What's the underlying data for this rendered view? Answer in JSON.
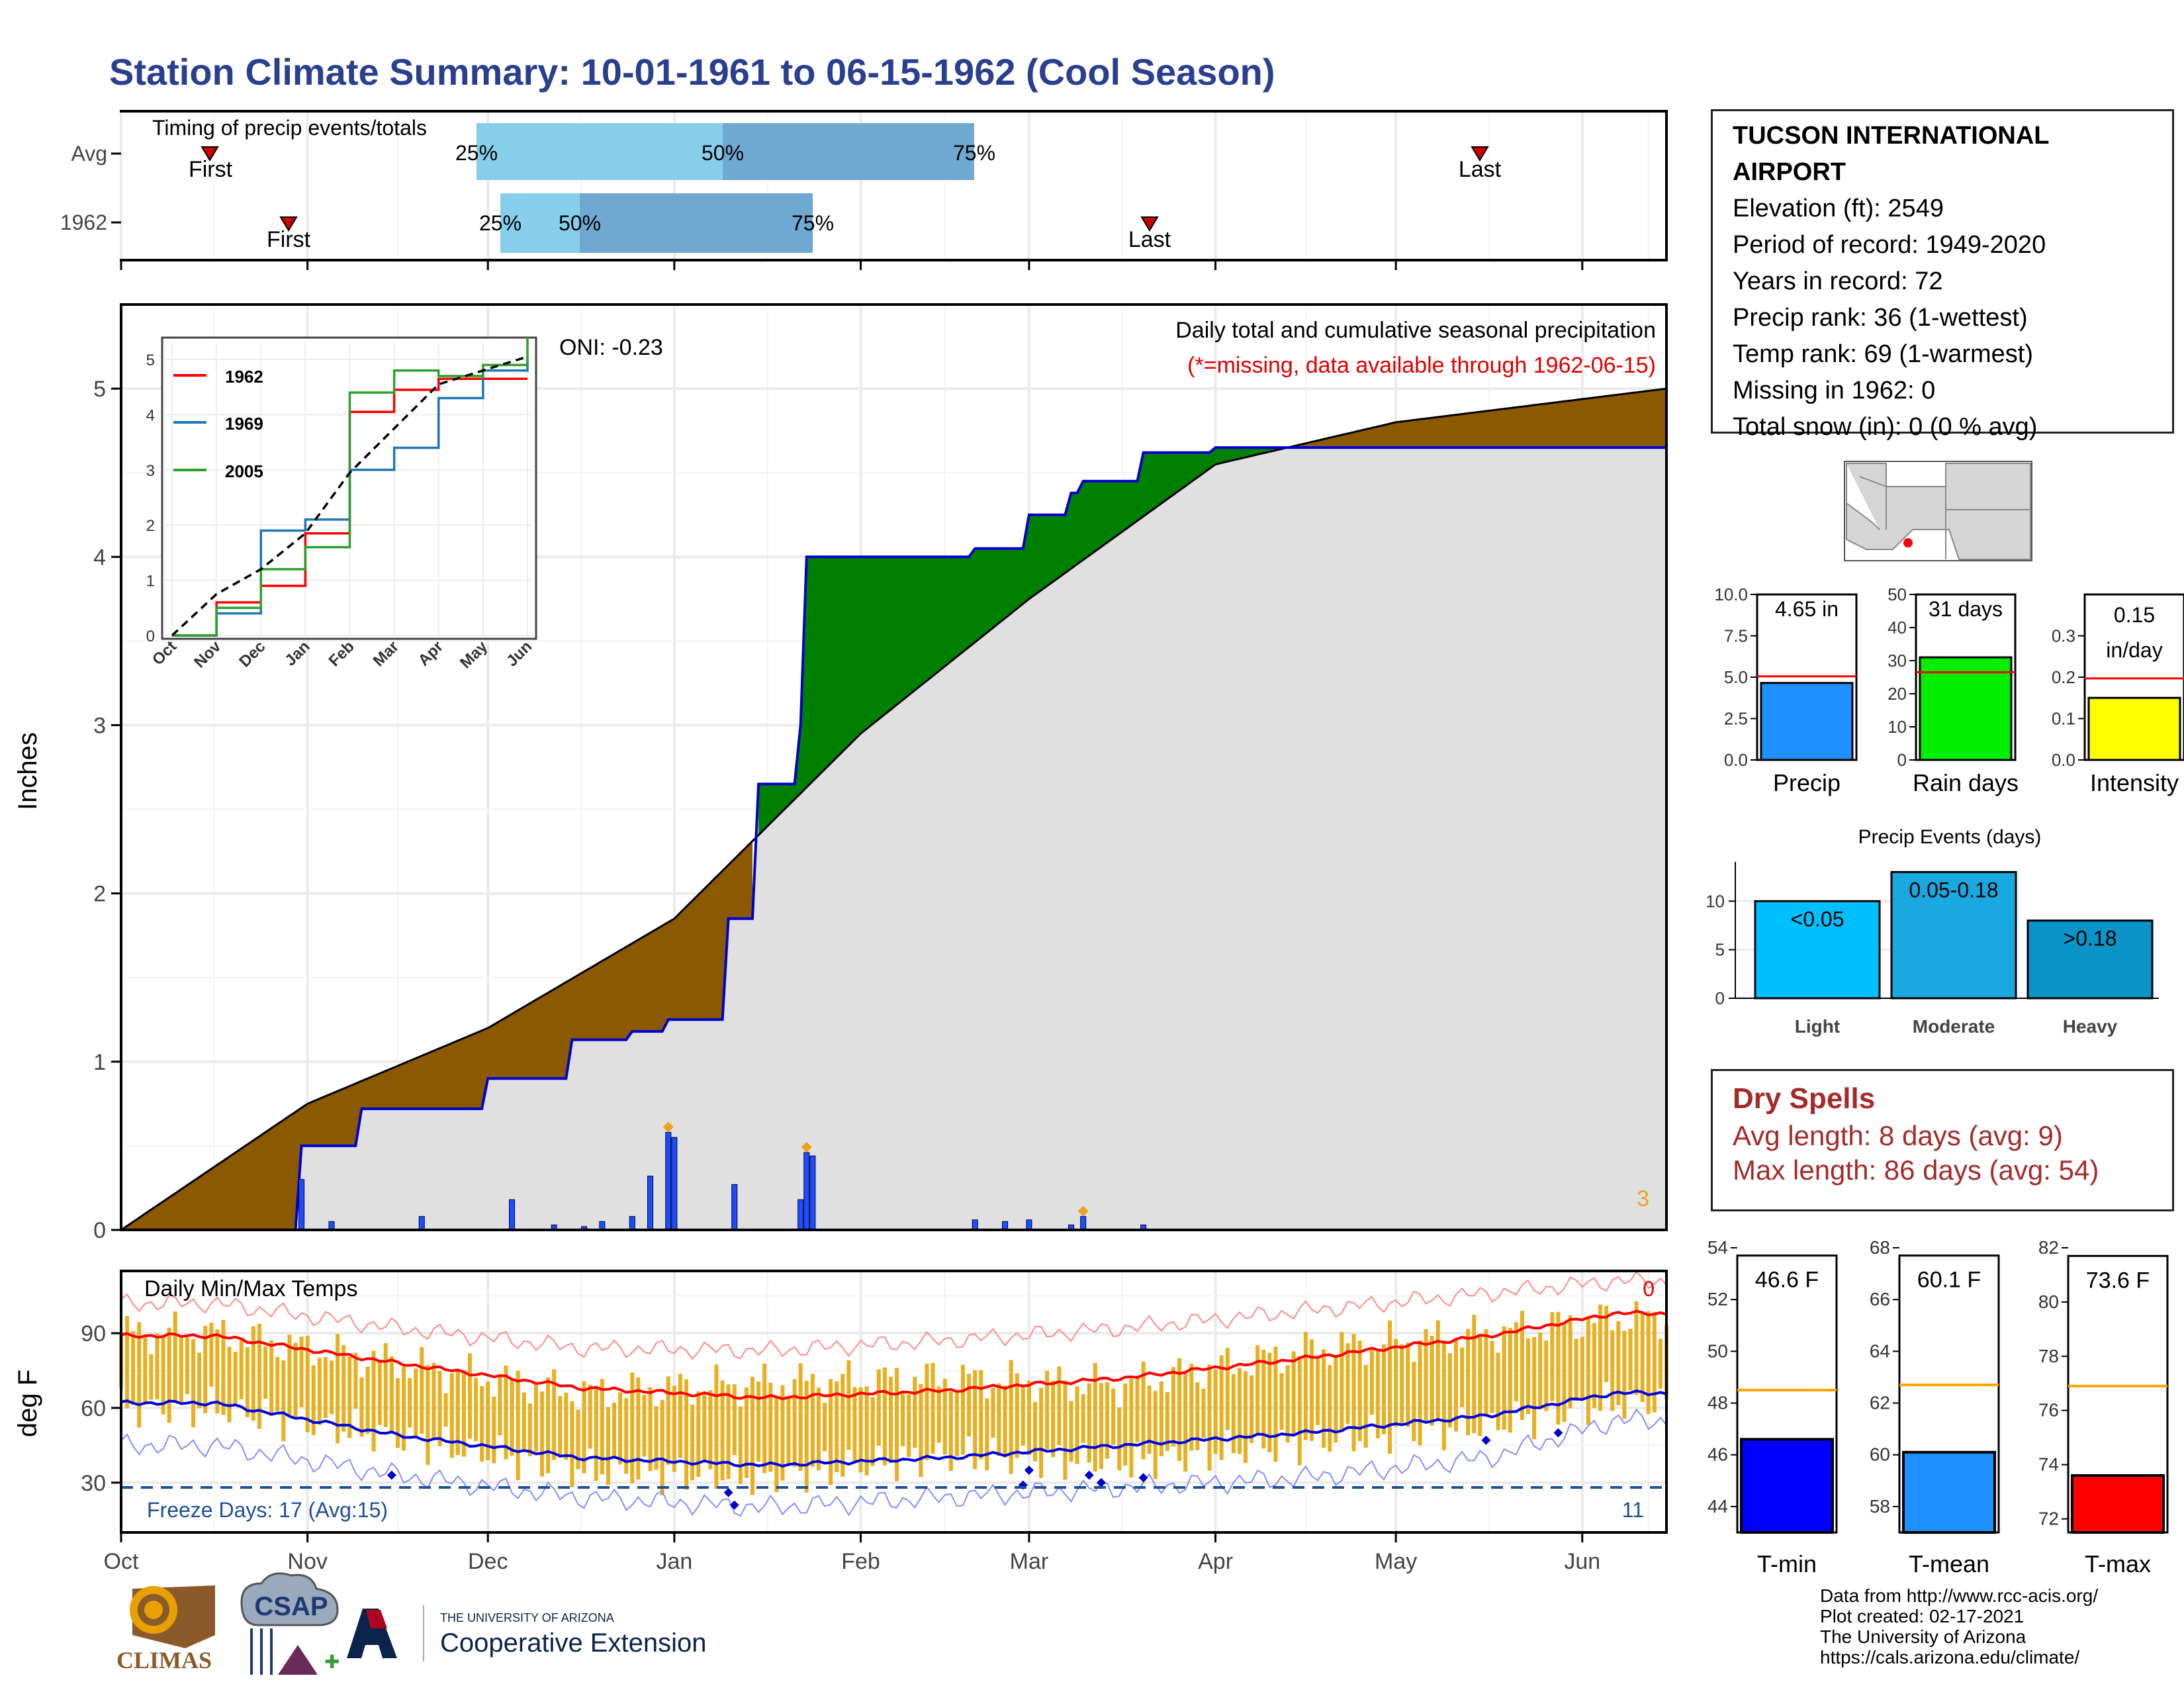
{
  "title": "Station Climate Summary: 10-01-1961 to 06-15-1962 (Cool Season)",
  "timing": {
    "label": "Timing of precip events/totals",
    "rows": [
      {
        "name": "Avg",
        "first": "First",
        "last": "Last",
        "q25": "25%",
        "q50": "50%",
        "q75": "75%"
      },
      {
        "name": "1962",
        "first": "First",
        "last": "Last",
        "q25": "25%",
        "q50": "50%",
        "q75": "75%"
      }
    ]
  },
  "precip_panel": {
    "oni": "ONI: -0.23",
    "heading": "Daily total and cumulative seasonal precipitation",
    "missing_note": "(*=missing, data available through 1962-06-15)",
    "y_label": "Inches",
    "y_ticks": [
      "0",
      "1",
      "2",
      "3",
      "4",
      "5"
    ],
    "corner_count": "3"
  },
  "inset": {
    "legend": [
      "1962",
      "1969",
      "2005"
    ],
    "y_ticks": [
      "0",
      "1",
      "2",
      "3",
      "4",
      "5"
    ],
    "x_ticks": [
      "Oct",
      "Nov",
      "Dec",
      "Jan",
      "Feb",
      "Mar",
      "Apr",
      "May",
      "Jun"
    ]
  },
  "temp_panel": {
    "label": "Daily Min/Max Temps",
    "y_label": "deg F",
    "y_ticks": [
      "30",
      "60",
      "90"
    ],
    "freeze": "Freeze Days: 17 (Avg:15)",
    "freeze_count": "11",
    "hot_count": "0"
  },
  "months": [
    "Oct",
    "Nov",
    "Dec",
    "Jan",
    "Feb",
    "Mar",
    "Apr",
    "May",
    "Jun"
  ],
  "station": {
    "name_line1": "TUCSON INTERNATIONAL",
    "name_line2": "AIRPORT",
    "elevation": "Elevation (ft): 2549",
    "period": "Period of record: 1949-2020",
    "years": "Years in record: 72",
    "precip_rank": "Precip rank: 36 (1-wettest)",
    "temp_rank": "Temp rank: 69 (1-warmest)",
    "missing": "Missing in 1962: 0",
    "snow": "Total snow (in): 0 (0 % avg)"
  },
  "mini_bars": [
    {
      "label": "Precip",
      "value_text": "4.65 in"
    },
    {
      "label": "Rain days",
      "value_text": "31 days"
    },
    {
      "label": "Intensity",
      "value_text_1": "0.15",
      "value_text_2": "in/day"
    }
  ],
  "events": {
    "title": "Precip Events (days)",
    "bars": [
      {
        "label": "Light",
        "range": "<0.05"
      },
      {
        "label": "Moderate",
        "range": "0.05-0.18"
      },
      {
        "label": "Heavy",
        "range": ">0.18"
      }
    ]
  },
  "dry_spells": {
    "title": "Dry Spells",
    "avg": "Avg length: 8 days (avg: 9)",
    "max": "Max length: 86 days (avg: 54)"
  },
  "temp_bars": [
    {
      "label": "T-min",
      "value_text": "46.6 F"
    },
    {
      "label": "T-mean",
      "value_text": "60.1 F"
    },
    {
      "label": "T-max",
      "value_text": "73.6 F"
    }
  ],
  "credits": [
    "Data from http://www.rcc-acis.org/",
    "Plot created: 02-17-2021",
    "The University of Arizona",
    "https://cals.arizona.edu/climate/"
  ],
  "logos": {
    "climas": "CLIMAS",
    "csap": "CSAP",
    "ua_small": "THE UNIVERSITY OF ARIZONA",
    "ua_big": "Cooperative Extension"
  },
  "colors": {
    "title": "#2a3f8f",
    "cum_actual_fill": "#e0e0e0",
    "surplus": "#008000",
    "deficit": "#8b5a00",
    "bar_daily": "#1e4dff",
    "temp_bar": "#e8b020",
    "max_line": "#ff0000",
    "min_line": "#0000dd",
    "dry": "#a52a2a"
  },
  "chart_data": [
    {
      "type": "area",
      "title": "Daily total and cumulative seasonal precipitation",
      "ylabel": "Inches",
      "ylim": [
        0,
        5.5
      ],
      "x_range": [
        "1961-10-01",
        "1962-06-15"
      ],
      "series": [
        {
          "name": "cumulative 1962",
          "x": [
            "1961-10-01",
            "1961-10-31",
            "1961-11-10",
            "1961-12-01",
            "1961-12-15",
            "1961-12-25",
            "1961-12-31",
            "1962-01-10",
            "1962-01-15",
            "1962-01-22",
            "1962-01-23",
            "1962-02-20",
            "1962-03-01",
            "1962-03-08",
            "1962-03-10",
            "1962-03-20",
            "1962-04-01",
            "1962-06-15"
          ],
          "y": [
            0,
            0.5,
            0.72,
            0.9,
            1.13,
            1.18,
            1.25,
            1.85,
            2.65,
            3.0,
            4.0,
            4.05,
            4.25,
            4.38,
            4.45,
            4.62,
            4.65,
            4.65
          ]
        },
        {
          "name": "cumulative average",
          "x": [
            "1961-10-01",
            "1961-11-01",
            "1961-12-01",
            "1962-01-01",
            "1962-02-01",
            "1962-03-01",
            "1962-04-01",
            "1962-05-01",
            "1962-06-15"
          ],
          "y": [
            0,
            0.75,
            1.2,
            1.85,
            2.95,
            3.75,
            4.55,
            4.8,
            5.0
          ]
        },
        {
          "name": "daily precip",
          "x": [
            "1961-10-31",
            "1961-11-05",
            "1961-11-20",
            "1961-12-05",
            "1961-12-12",
            "1961-12-17",
            "1961-12-20",
            "1961-12-25",
            "1961-12-28",
            "1961-12-31",
            "1962-01-01",
            "1962-01-11",
            "1962-01-22",
            "1962-01-23",
            "1962-01-24",
            "1962-02-20",
            "1962-02-25",
            "1962-03-01",
            "1962-03-08",
            "1962-03-10",
            "1962-03-20"
          ],
          "y": [
            0.3,
            0.05,
            0.08,
            0.18,
            0.03,
            0.02,
            0.05,
            0.08,
            0.32,
            0.58,
            0.55,
            0.27,
            0.18,
            0.46,
            0.44,
            0.06,
            0.05,
            0.06,
            0.03,
            0.08,
            0.03
          ]
        }
      ]
    },
    {
      "type": "line",
      "x": [
        "Oct",
        "Nov",
        "Dec",
        "Jan",
        "Feb",
        "Mar",
        "Apr",
        "May",
        "Jun"
      ],
      "ylim": [
        0,
        5.3
      ],
      "series": [
        {
          "name": "1962",
          "y": [
            0,
            0.6,
            0.9,
            1.85,
            4.05,
            4.45,
            4.65,
            4.65,
            4.65
          ]
        },
        {
          "name": "1969",
          "y": [
            0,
            0.4,
            1.9,
            2.1,
            3.0,
            3.4,
            4.3,
            4.8,
            5.0
          ]
        },
        {
          "name": "2005",
          "y": [
            0,
            0.5,
            1.2,
            1.6,
            4.4,
            4.8,
            4.7,
            4.9,
            5.4
          ]
        },
        {
          "y": [
            0,
            0.75,
            1.2,
            1.85,
            2.95,
            3.75,
            4.55,
            4.8,
            5.05
          ]
        }
      ]
    },
    {
      "type": "bar",
      "title": "Daily Min/Max Temps",
      "ylabel": "deg F",
      "ylim": [
        10,
        115
      ],
      "x": [
        "Oct",
        "Nov",
        "Dec",
        "Jan",
        "Feb",
        "Mar",
        "Apr",
        "May",
        "Jun"
      ],
      "series": [
        {
          "name": "avg max",
          "y": [
            89,
            78,
            68,
            64,
            67,
            72,
            80,
            89,
            98
          ]
        },
        {
          "name": "avg min",
          "y": [
            62,
            49,
            40,
            37,
            40,
            45,
            50,
            57,
            66
          ]
        },
        {
          "name": "record max",
          "y": [
            102,
            92,
            84,
            83,
            87,
            92,
            99,
            106,
            111
          ]
        },
        {
          "name": "record min",
          "y": [
            45,
            33,
            24,
            20,
            24,
            28,
            32,
            40,
            55
          ]
        },
        {
          "name": "daily max 1962",
          "y": [
            90,
            78,
            66,
            70,
            72,
            69,
            83,
            90,
            96
          ]
        },
        {
          "name": "daily min 1962",
          "y": [
            60,
            48,
            35,
            32,
            41,
            38,
            46,
            53,
            62
          ]
        }
      ]
    },
    {
      "type": "bar",
      "categories": [
        "Precip",
        "Rain days",
        "Intensity"
      ],
      "values": [
        4.65,
        31,
        0.15
      ],
      "averages": [
        5.05,
        26.5,
        0.197
      ]
    },
    {
      "type": "bar",
      "title": "Precip Events (days)",
      "categories": [
        "Light",
        "Moderate",
        "Heavy"
      ],
      "values": [
        10,
        13,
        8
      ],
      "ylim": [
        0,
        13.5
      ]
    },
    {
      "type": "bar",
      "categories": [
        "T-min",
        "T-mean",
        "T-max"
      ],
      "values": [
        46.6,
        60.1,
        73.6
      ],
      "averages": [
        48.5,
        62.7,
        76.9
      ],
      "ylims": [
        [
          43,
          54
        ],
        [
          57,
          68
        ],
        [
          71.5,
          82
        ]
      ]
    }
  ]
}
